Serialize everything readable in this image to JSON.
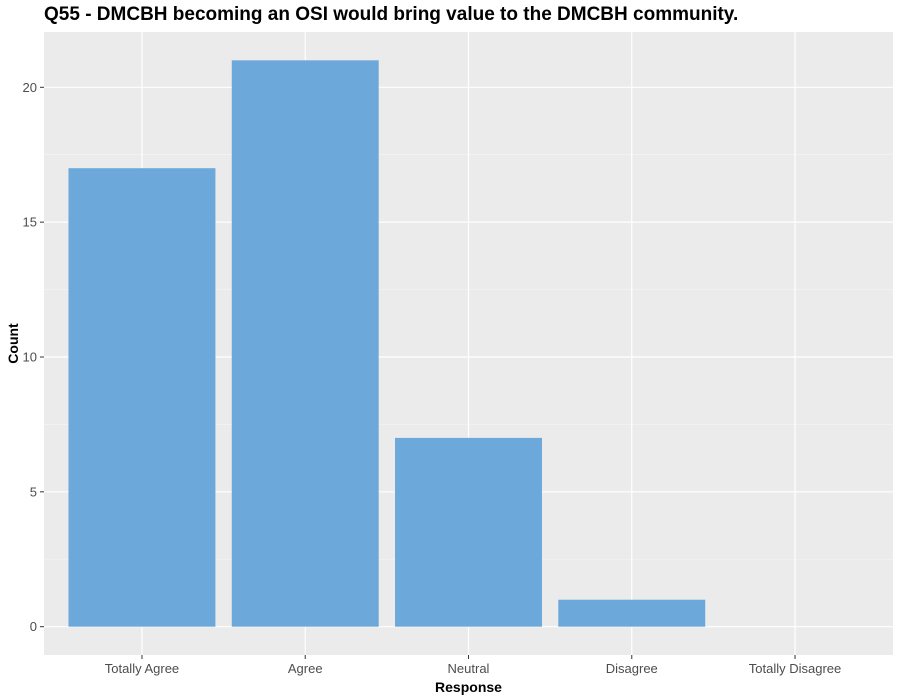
{
  "chart_data": {
    "type": "bar",
    "title": "Q55 - DMCBH becoming an OSI would bring value to the DMCBH community.",
    "xlabel": "Response",
    "ylabel": "Count",
    "categories": [
      "Totally Agree",
      "Agree",
      "Neutral",
      "Disagree",
      "Totally Disagree"
    ],
    "values": [
      17,
      21,
      7,
      1,
      0
    ],
    "ylim": [
      -1.05,
      22.05
    ],
    "y_ticks": [
      0,
      5,
      10,
      15,
      20
    ],
    "grid": true,
    "legend": "none",
    "colors": {
      "bar": "#6CA8DA",
      "panel": "#EBEBEB",
      "grid_major": "#FFFFFF",
      "grid_minor": "#F5F5F5",
      "tick_text": "#4D4D4D"
    }
  }
}
